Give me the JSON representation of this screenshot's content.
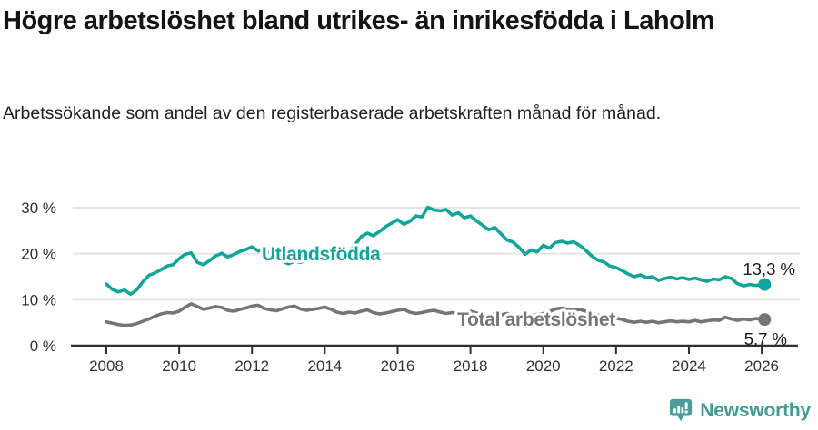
{
  "header": {
    "title": "Högre arbetslöshet bland utrikes- än inrikesfödda i Laholm",
    "subtitle": "Arbetssökande som andel av den registerbaserade arbetskraften månad för månad."
  },
  "chart_data": {
    "type": "line",
    "title": "Högre arbetslöshet bland utrikes- än inrikesfödda i Laholm",
    "xlabel": "",
    "ylabel": "",
    "y_unit": "%",
    "xlim": [
      2007.6,
      2026.9
    ],
    "ylim": [
      0,
      30
    ],
    "x_ticks": [
      2008,
      2010,
      2012,
      2014,
      2016,
      2018,
      2020,
      2022,
      2024,
      2026
    ],
    "y_ticks": [
      0,
      10,
      20,
      30
    ],
    "grid": "horizontal",
    "legend_position": "inline-labels",
    "series": [
      {
        "name": "Utlandsfödda",
        "color": "#10A59B",
        "end_label": "13,3 %",
        "points": [
          [
            2008.0,
            13.4
          ],
          [
            2008.17,
            12.2
          ],
          [
            2008.33,
            11.7
          ],
          [
            2008.5,
            12.1
          ],
          [
            2008.67,
            11.2
          ],
          [
            2008.83,
            12.1
          ],
          [
            2009.0,
            13.9
          ],
          [
            2009.17,
            15.3
          ],
          [
            2009.33,
            15.8
          ],
          [
            2009.5,
            16.5
          ],
          [
            2009.67,
            17.3
          ],
          [
            2009.83,
            17.6
          ],
          [
            2010.0,
            18.9
          ],
          [
            2010.17,
            19.9
          ],
          [
            2010.33,
            20.2
          ],
          [
            2010.5,
            18.1
          ],
          [
            2010.67,
            17.6
          ],
          [
            2010.83,
            18.5
          ],
          [
            2011.0,
            19.5
          ],
          [
            2011.17,
            20.1
          ],
          [
            2011.33,
            19.3
          ],
          [
            2011.5,
            19.8
          ],
          [
            2011.67,
            20.5
          ],
          [
            2011.83,
            20.9
          ],
          [
            2012.0,
            21.5
          ],
          [
            2012.17,
            20.6
          ],
          [
            2012.33,
            20.9
          ],
          [
            2012.5,
            20.2
          ],
          [
            2012.67,
            19.3
          ],
          [
            2012.83,
            18.4
          ],
          [
            2013.0,
            17.8
          ],
          [
            2013.17,
            18.4
          ],
          [
            2013.33,
            18.1
          ],
          [
            2013.5,
            18.9
          ],
          [
            2013.67,
            19.5
          ],
          [
            2013.83,
            19.9
          ],
          [
            2014.0,
            20.4
          ],
          [
            2014.17,
            19.4
          ],
          [
            2014.33,
            20.1
          ],
          [
            2014.5,
            21.0
          ],
          [
            2014.67,
            20.4
          ],
          [
            2014.83,
            21.9
          ],
          [
            2015.0,
            23.7
          ],
          [
            2015.17,
            24.5
          ],
          [
            2015.33,
            23.9
          ],
          [
            2015.5,
            24.8
          ],
          [
            2015.67,
            25.9
          ],
          [
            2015.83,
            26.6
          ],
          [
            2016.0,
            27.4
          ],
          [
            2016.17,
            26.4
          ],
          [
            2016.33,
            27.0
          ],
          [
            2016.5,
            28.2
          ],
          [
            2016.67,
            28.0
          ],
          [
            2016.83,
            30.1
          ],
          [
            2017.0,
            29.5
          ],
          [
            2017.17,
            29.3
          ],
          [
            2017.33,
            29.6
          ],
          [
            2017.5,
            28.4
          ],
          [
            2017.67,
            28.9
          ],
          [
            2017.83,
            27.8
          ],
          [
            2018.0,
            28.2
          ],
          [
            2018.17,
            27.1
          ],
          [
            2018.33,
            26.2
          ],
          [
            2018.5,
            25.2
          ],
          [
            2018.67,
            25.7
          ],
          [
            2018.83,
            24.4
          ],
          [
            2019.0,
            23.0
          ],
          [
            2019.17,
            22.5
          ],
          [
            2019.33,
            21.4
          ],
          [
            2019.5,
            19.9
          ],
          [
            2019.67,
            20.8
          ],
          [
            2019.83,
            20.4
          ],
          [
            2020.0,
            21.8
          ],
          [
            2020.17,
            21.2
          ],
          [
            2020.33,
            22.4
          ],
          [
            2020.5,
            22.7
          ],
          [
            2020.67,
            22.3
          ],
          [
            2020.83,
            22.6
          ],
          [
            2021.0,
            21.8
          ],
          [
            2021.17,
            20.7
          ],
          [
            2021.33,
            19.5
          ],
          [
            2021.5,
            18.6
          ],
          [
            2021.67,
            18.2
          ],
          [
            2021.83,
            17.3
          ],
          [
            2022.0,
            17.0
          ],
          [
            2022.17,
            16.3
          ],
          [
            2022.33,
            15.6
          ],
          [
            2022.5,
            15.0
          ],
          [
            2022.67,
            15.4
          ],
          [
            2022.83,
            14.8
          ],
          [
            2023.0,
            15.0
          ],
          [
            2023.17,
            14.2
          ],
          [
            2023.33,
            14.6
          ],
          [
            2023.5,
            14.9
          ],
          [
            2023.67,
            14.5
          ],
          [
            2023.83,
            14.8
          ],
          [
            2024.0,
            14.4
          ],
          [
            2024.17,
            14.7
          ],
          [
            2024.33,
            14.3
          ],
          [
            2024.5,
            14.0
          ],
          [
            2024.67,
            14.5
          ],
          [
            2024.83,
            14.3
          ],
          [
            2025.0,
            15.0
          ],
          [
            2025.17,
            14.6
          ],
          [
            2025.33,
            13.5
          ],
          [
            2025.5,
            13.0
          ],
          [
            2025.67,
            13.3
          ],
          [
            2025.83,
            13.1
          ],
          [
            2026.08,
            13.3
          ]
        ]
      },
      {
        "name": "Total arbetslöshet",
        "color": "#757575",
        "end_label": "5,7 %",
        "points": [
          [
            2008.0,
            5.2
          ],
          [
            2008.17,
            4.9
          ],
          [
            2008.33,
            4.6
          ],
          [
            2008.5,
            4.4
          ],
          [
            2008.67,
            4.5
          ],
          [
            2008.83,
            4.8
          ],
          [
            2009.0,
            5.3
          ],
          [
            2009.17,
            5.8
          ],
          [
            2009.33,
            6.4
          ],
          [
            2009.5,
            6.9
          ],
          [
            2009.67,
            7.2
          ],
          [
            2009.83,
            7.1
          ],
          [
            2010.0,
            7.5
          ],
          [
            2010.17,
            8.4
          ],
          [
            2010.33,
            9.1
          ],
          [
            2010.5,
            8.5
          ],
          [
            2010.67,
            7.9
          ],
          [
            2010.83,
            8.2
          ],
          [
            2011.0,
            8.5
          ],
          [
            2011.17,
            8.3
          ],
          [
            2011.33,
            7.7
          ],
          [
            2011.5,
            7.5
          ],
          [
            2011.67,
            7.9
          ],
          [
            2011.83,
            8.2
          ],
          [
            2012.0,
            8.6
          ],
          [
            2012.17,
            8.8
          ],
          [
            2012.33,
            8.1
          ],
          [
            2012.5,
            7.8
          ],
          [
            2012.67,
            7.6
          ],
          [
            2012.83,
            8.0
          ],
          [
            2013.0,
            8.4
          ],
          [
            2013.17,
            8.6
          ],
          [
            2013.33,
            8.0
          ],
          [
            2013.5,
            7.7
          ],
          [
            2013.67,
            7.9
          ],
          [
            2013.83,
            8.1
          ],
          [
            2014.0,
            8.4
          ],
          [
            2014.17,
            7.9
          ],
          [
            2014.33,
            7.3
          ],
          [
            2014.5,
            7.0
          ],
          [
            2014.67,
            7.3
          ],
          [
            2014.83,
            7.1
          ],
          [
            2015.0,
            7.5
          ],
          [
            2015.17,
            7.8
          ],
          [
            2015.33,
            7.2
          ],
          [
            2015.5,
            6.9
          ],
          [
            2015.67,
            7.1
          ],
          [
            2015.83,
            7.4
          ],
          [
            2016.0,
            7.7
          ],
          [
            2016.17,
            7.9
          ],
          [
            2016.33,
            7.3
          ],
          [
            2016.5,
            7.0
          ],
          [
            2016.67,
            7.2
          ],
          [
            2016.83,
            7.5
          ],
          [
            2017.0,
            7.7
          ],
          [
            2017.17,
            7.3
          ],
          [
            2017.33,
            7.0
          ],
          [
            2017.5,
            7.2
          ],
          [
            2017.67,
            7.0
          ],
          [
            2017.83,
            7.3
          ],
          [
            2018.0,
            7.5
          ],
          [
            2018.17,
            7.1
          ],
          [
            2018.33,
            6.8
          ],
          [
            2018.5,
            6.6
          ],
          [
            2018.67,
            6.9
          ],
          [
            2018.83,
            6.7
          ],
          [
            2019.0,
            7.0
          ],
          [
            2019.17,
            6.7
          ],
          [
            2019.33,
            6.4
          ],
          [
            2019.5,
            6.2
          ],
          [
            2019.67,
            6.5
          ],
          [
            2019.83,
            6.8
          ],
          [
            2020.0,
            7.0
          ],
          [
            2020.17,
            7.4
          ],
          [
            2020.33,
            8.0
          ],
          [
            2020.5,
            8.2
          ],
          [
            2020.67,
            7.9
          ],
          [
            2020.83,
            7.7
          ],
          [
            2021.0,
            7.9
          ],
          [
            2021.17,
            7.5
          ],
          [
            2021.33,
            7.0
          ],
          [
            2021.5,
            6.7
          ],
          [
            2021.67,
            6.4
          ],
          [
            2021.83,
            6.1
          ],
          [
            2022.0,
            6.0
          ],
          [
            2022.17,
            5.7
          ],
          [
            2022.33,
            5.3
          ],
          [
            2022.5,
            5.1
          ],
          [
            2022.67,
            5.3
          ],
          [
            2022.83,
            5.1
          ],
          [
            2023.0,
            5.3
          ],
          [
            2023.17,
            5.0
          ],
          [
            2023.33,
            5.2
          ],
          [
            2023.5,
            5.4
          ],
          [
            2023.67,
            5.2
          ],
          [
            2023.83,
            5.3
          ],
          [
            2024.0,
            5.2
          ],
          [
            2024.17,
            5.5
          ],
          [
            2024.33,
            5.2
          ],
          [
            2024.5,
            5.4
          ],
          [
            2024.67,
            5.6
          ],
          [
            2024.83,
            5.5
          ],
          [
            2025.0,
            6.2
          ],
          [
            2025.17,
            5.8
          ],
          [
            2025.33,
            5.5
          ],
          [
            2025.5,
            5.8
          ],
          [
            2025.67,
            5.6
          ],
          [
            2025.83,
            5.9
          ],
          [
            2026.08,
            5.7
          ]
        ]
      }
    ]
  },
  "branding": {
    "logo_text": "Newsworthy",
    "logo_text_color": "#3F9B96",
    "logo_icon_color": "#4E9C98"
  },
  "colors": {
    "foreign_born_line": "#10A59B",
    "total_line": "#757575",
    "gridline": "#E4E4E4",
    "axis": "#2F2F2F",
    "tick_label": "#333333",
    "annotation": "#1A1A1A"
  }
}
